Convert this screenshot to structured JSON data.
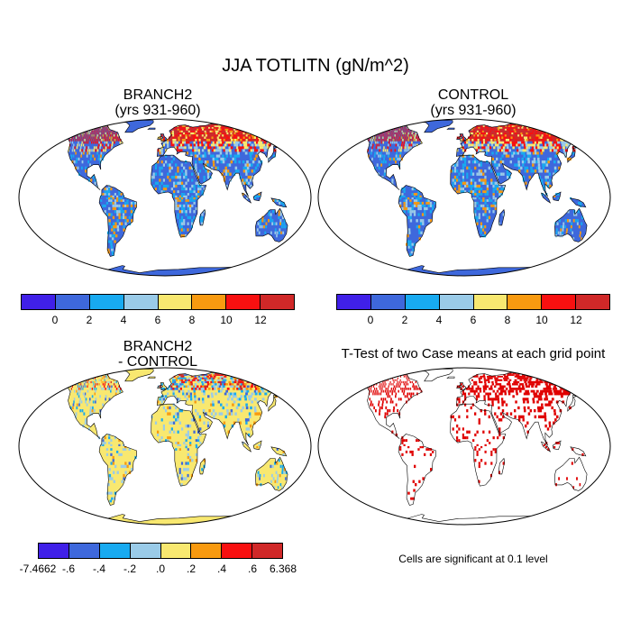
{
  "main_title": "JJA TOTLITN (gN/m^2)",
  "panels": {
    "branch": {
      "title1": "BRANCH2",
      "title2": "(yrs 931-960)"
    },
    "control": {
      "title1": "CONTROL",
      "title2": "(yrs 931-960)"
    },
    "diff": {
      "title1": "BRANCH2",
      "title2": "- CONTROL"
    },
    "ttest": {
      "title": "T-Test of two Case means at each grid point",
      "note": "Cells are significant at 0.1 level"
    }
  },
  "colorbars": {
    "absolute": {
      "colors": [
        "#4020e8",
        "#3e68dc",
        "#18aaf0",
        "#9acbe8",
        "#f8e870",
        "#f89a10",
        "#f81010",
        "#d02828"
      ],
      "labels": [
        "0",
        "2",
        "4",
        "6",
        "8",
        "10",
        "12"
      ]
    },
    "difference": {
      "colors": [
        "#4020e8",
        "#3e68dc",
        "#18aaf0",
        "#9acbe8",
        "#f8e870",
        "#f89a10",
        "#f81010",
        "#d02828"
      ],
      "labels": [
        "-7.4662",
        "-.6",
        "-.4",
        "-.2",
        ".0",
        ".2",
        ".4",
        ".6",
        "6.368"
      ]
    }
  },
  "colors": {
    "ocean": "#ffffff",
    "land_base": "#3e68dc",
    "diff_base": "#f8e870",
    "significant": "#e00000"
  }
}
